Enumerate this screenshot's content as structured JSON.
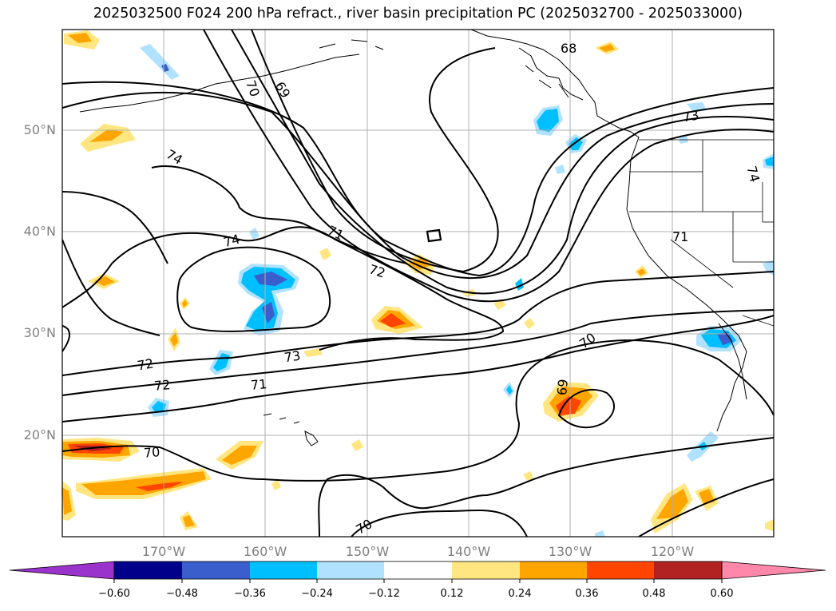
{
  "title": "2025032500 F024 200 hPa refract., river basin precipitation PC (2025032700 - 2025033000)",
  "lat_labels": [
    "50°N",
    "40°N",
    "30°N",
    "20°N"
  ],
  "lon_labels": [
    "170°W",
    "160°W",
    "150°W",
    "140°W",
    "130°W",
    "120°W"
  ],
  "contour_labels": [
    "68",
    "69",
    "70",
    "73",
    "74",
    "74",
    "71",
    "72",
    "74",
    "72",
    "73",
    "72",
    "71",
    "70",
    "69",
    "70",
    "70",
    "71"
  ],
  "colorbar": {
    "ticks": [
      "−0.60",
      "−0.48",
      "−0.36",
      "−0.24",
      "−0.12",
      "0.12",
      "0.24",
      "0.36",
      "0.48",
      "0.60"
    ],
    "colors": [
      "#9933cc",
      "#00008b",
      "#3a5fcd",
      "#00bfff",
      "#b0e2ff",
      "#ffffff",
      "#ffe680",
      "#ffa500",
      "#ff4500",
      "#b22222",
      "#ff88aa"
    ]
  }
}
